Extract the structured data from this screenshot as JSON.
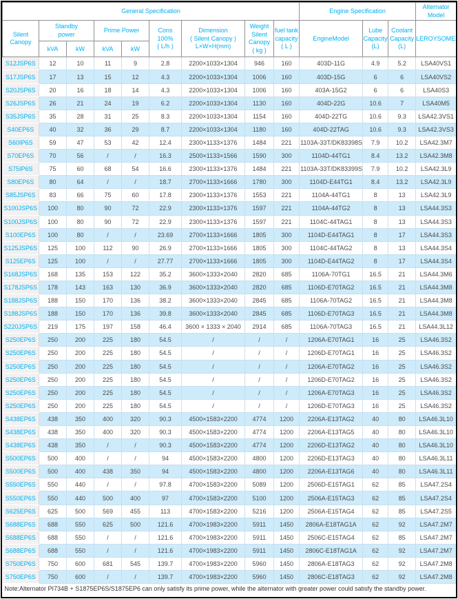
{
  "colors": {
    "accent": "#00AEEF",
    "stripe": "#CDEBFA",
    "first_col_bg": "#F1F1F1",
    "data_text": "#4A4A4A",
    "outer_border": "#000000"
  },
  "table": {
    "groups": {
      "general": "General Specification",
      "engine": "Engine Specification",
      "alternator": "Alternator Model"
    },
    "headers": {
      "silent_canopy": "Silent Canopy",
      "standby_power": "Standby\npower",
      "prime_power": "Prime Power",
      "kva": "kVA",
      "kw": "kW",
      "cons": "Cons\n100%\n( L/h )",
      "dimension": "Dimension\n( Silent Canopy )\nL×W×H(mm)",
      "weight": "Weight\nSilent\nCanopy\n( kg )",
      "fuel_tank": "fuel tank\ncapacity\n( L )",
      "engine_model": "EngineModel",
      "lube": "Lube\nCapacity\n(L)",
      "coolant": "Coolant\nCapacity\n(L)",
      "leroysomer": "LEROYSOMER"
    },
    "rows": [
      [
        "S12JSP6S",
        "12",
        "10",
        "11",
        "9",
        "2.8",
        "2200×1033×1304",
        "946",
        "160",
        "403D-11G",
        "4.9",
        "5.2",
        "LSA40VS1"
      ],
      [
        "S17JSP6S",
        "17",
        "13",
        "15",
        "12",
        "4.3",
        "2200×1033×1304",
        "1006",
        "160",
        "403D-15G",
        "6",
        "6",
        "LSA40VS2"
      ],
      [
        "S20JSP6S",
        "20",
        "16",
        "18",
        "14",
        "4.3",
        "2200×1033×1304",
        "1006",
        "160",
        "403A-15G2",
        "6",
        "6",
        "LSA40S3"
      ],
      [
        "S26JSP6S",
        "26",
        "21",
        "24",
        "19",
        "6.2",
        "2200×1033×1304",
        "1130",
        "160",
        "404D-22G",
        "10.6",
        "7",
        "LSA40M5"
      ],
      [
        "S35JSP6S",
        "35",
        "28",
        "31",
        "25",
        "8.3",
        "2200×1033×1304",
        "1154",
        "160",
        "404D-22TG",
        "10.6",
        "9.3",
        "LSA42.3VS1"
      ],
      [
        "S40EP6S",
        "40",
        "32",
        "36",
        "29",
        "8.7",
        "2200×1033×1304",
        "1180",
        "160",
        "404D-22TAG",
        "10.6",
        "9.3",
        "LSA42.3VS3"
      ],
      [
        "S60IP6S",
        "59",
        "47",
        "53",
        "42",
        "12.4",
        "2300×1133×1376",
        "1484",
        "221",
        "1103A-33T/DK83398S",
        "7.9",
        "10.2",
        "LSA42.3M7"
      ],
      [
        "S70EP6S",
        "70",
        "56",
        "/",
        "/",
        "16.3",
        "2500×1133×1566",
        "1590",
        "300",
        "1104D-44TG1",
        "8.4",
        "13.2",
        "LSA42.3M8"
      ],
      [
        "S75IP6S",
        "75",
        "60",
        "68",
        "54",
        "16.6",
        "2300×1133×1376",
        "1484",
        "221",
        "1103A-33T/DK83399S",
        "7.9",
        "10.2",
        "LSA42.3L9"
      ],
      [
        "S80EP6S",
        "80",
        "64",
        "/",
        "/",
        "18.7",
        "2700×1133×1666",
        "1780",
        "300",
        "1104D-E44TG1",
        "8.4",
        "13.2",
        "LSA42.3L9"
      ],
      [
        "S85JSP6S",
        "83",
        "66",
        "75",
        "60",
        "17.8",
        "2300×1133×1376",
        "1553",
        "221",
        "1104A-44TG1",
        "8",
        "13",
        "LSA42.3L9"
      ],
      [
        "S100JSP6S",
        "100",
        "80",
        "90",
        "72",
        "22.9",
        "2300×1133×1376",
        "1597",
        "221",
        "1104A-44TG2",
        "8",
        "13",
        "LSA44.3S3"
      ],
      [
        "S100JSP6S",
        "100",
        "80",
        "90",
        "72",
        "22.9",
        "2300×1133×1376",
        "1597",
        "221",
        "1104C-44TAG1",
        "8",
        "13",
        "LSA44.3S3"
      ],
      [
        "S100EP6S",
        "100",
        "80",
        "/",
        "/",
        "23.69",
        "2700×1133×1666",
        "1805",
        "300",
        "1104D-E44TAG1",
        "8",
        "17",
        "LSA44.3S3"
      ],
      [
        "S125JSP6S",
        "125",
        "100",
        "112",
        "90",
        "26.9",
        "2700×1133×1666",
        "1805",
        "300",
        "1104C-44TAG2",
        "8",
        "13",
        "LSA44.3S4"
      ],
      [
        "S125EP6S",
        "125",
        "100",
        "/",
        "/",
        "27.77",
        "2700×1133×1666",
        "1805",
        "300",
        "1104D-E44TAG2",
        "8",
        "17",
        "LSA44.3S4"
      ],
      [
        "S168JSP6S",
        "168",
        "135",
        "153",
        "122",
        "35.2",
        "3600×1333×2040",
        "2820",
        "685",
        "1106A-70TG1",
        "16.5",
        "21",
        "LSA44.3M6"
      ],
      [
        "S178JSP6S",
        "178",
        "143",
        "163",
        "130",
        "36.9",
        "3600×1333×2040",
        "2820",
        "685",
        "1106D-E70TAG2",
        "16.5",
        "21",
        "LSA44.3M8"
      ],
      [
        "S188JSP6S",
        "188",
        "150",
        "170",
        "136",
        "38.2",
        "3600×1333×2040",
        "2845",
        "685",
        "1106A-70TAG2",
        "16.5",
        "21",
        "LSA44.3M8"
      ],
      [
        "S188JSP6S",
        "188",
        "150",
        "170",
        "136",
        "39.8",
        "3600×1333×2040",
        "2845",
        "685",
        "1106D-E70TAG3",
        "16.5",
        "21",
        "LSA44.3M8"
      ],
      [
        "S220JSP6S",
        "219",
        "175",
        "197",
        "158",
        "46.4",
        "3600 × 1333 × 2040",
        "2914",
        "685",
        "1106A-70TAG3",
        "16.5",
        "21",
        "LSA44.3L12"
      ],
      [
        "S250EP6S",
        "250",
        "200",
        "225",
        "180",
        "54.5",
        "/",
        "/",
        "/",
        "1206A-E70TAG1",
        "16",
        "25",
        "LSA46.3S2"
      ],
      [
        "S250EP6S",
        "250",
        "200",
        "225",
        "180",
        "54.5",
        "/",
        "/",
        "/",
        "1206D-E70TAG1",
        "16",
        "25",
        "LSA46.3S2"
      ],
      [
        "S250EP6S",
        "250",
        "200",
        "225",
        "180",
        "54.5",
        "/",
        "/",
        "/",
        "1206A-E70TAG2",
        "16",
        "25",
        "LSA46.3S2"
      ],
      [
        "S250EP6S",
        "250",
        "200",
        "225",
        "180",
        "54.5",
        "/",
        "/",
        "/",
        "1206D-E70TAG2",
        "16",
        "25",
        "LSA46.3S2"
      ],
      [
        "S250EP6S",
        "250",
        "200",
        "225",
        "180",
        "54.5",
        "/",
        "/",
        "/",
        "1206A-E70TAG3",
        "16",
        "25",
        "LSA46.3S2"
      ],
      [
        "S250EP6S",
        "250",
        "200",
        "225",
        "180",
        "54.5",
        "/",
        "/",
        "/",
        "1206D-E70TAG3",
        "16",
        "25",
        "LSA46.3S2"
      ],
      [
        "S438EP6S",
        "438",
        "350",
        "400",
        "320",
        "90.3",
        "4500×1583×2200",
        "4774",
        "1200",
        "2206A-E13TAG2",
        "40",
        "80",
        "LSA46.3L10"
      ],
      [
        "S438EP6S",
        "438",
        "350",
        "400",
        "320",
        "90.3",
        "4500×1583×2200",
        "4774",
        "1200",
        "2206A-E13TAG5",
        "40",
        "80",
        "LSA46.3L10"
      ],
      [
        "S438EP6S",
        "438",
        "350",
        "/",
        "/",
        "90.3",
        "4500×1583×2200",
        "4774",
        "1200",
        "2206D-E13TAG2",
        "40",
        "80",
        "LSA46.3L10"
      ],
      [
        "S500EP6S",
        "500",
        "400",
        "/",
        "/",
        "94",
        "4500×1583×2200",
        "4800",
        "1200",
        "2206D-E13TAG3",
        "40",
        "80",
        "LSA46.3L11"
      ],
      [
        "S500EP6S",
        "500",
        "400",
        "438",
        "350",
        "94",
        "4500×1583×2200",
        "4800",
        "1200",
        "2206A-E13TAG6",
        "40",
        "80",
        "LSA46.3L11"
      ],
      [
        "S550EP6S",
        "550",
        "440",
        "/",
        "/",
        "97.8",
        "4700×1583×2200",
        "5089",
        "1200",
        "2506D-E15TAG1",
        "62",
        "85",
        "LSA47.2S4"
      ],
      [
        "S550EP6S",
        "550",
        "440",
        "500",
        "400",
        "97",
        "4700×1583×2200",
        "5100",
        "1200",
        "2506A-E15TAG3",
        "62",
        "85",
        "LSA47.2S4"
      ],
      [
        "S625EP6S",
        "625",
        "500",
        "569",
        "455",
        "113",
        "4700×1583×2200",
        "5216",
        "1200",
        "2506A-E15TAG4",
        "62",
        "85",
        "LSA47.2S5"
      ],
      [
        "S688EP6S",
        "688",
        "550",
        "625",
        "500",
        "121.6",
        "4700×1983×2200",
        "5911",
        "1450",
        "2806A-E18TAG1A",
        "62",
        "92",
        "LSA47.2M7"
      ],
      [
        "S688EP6S",
        "688",
        "550",
        "/",
        "/",
        "121.6",
        "4700×1983×2200",
        "5911",
        "1450",
        "2506C-E15TAG4",
        "62",
        "85",
        "LSA47.2M7"
      ],
      [
        "S688EP6S",
        "688",
        "550",
        "/",
        "/",
        "121.6",
        "4700×1983×2200",
        "5911",
        "1450",
        "2806C-E18TAG1A",
        "62",
        "92",
        "LSA47.2M7"
      ],
      [
        "S750EP6S",
        "750",
        "600",
        "681",
        "545",
        "139.7",
        "4700×1983×2200",
        "5960",
        "1450",
        "2806A-E18TAG3",
        "62",
        "92",
        "LSA47.2M8"
      ],
      [
        "S750EP6S",
        "750",
        "600",
        "/",
        "/",
        "139.7",
        "4700×1983×2200",
        "5960",
        "1450",
        "2806C-E18TAG3",
        "62",
        "92",
        "LSA47.2M8"
      ]
    ],
    "note": "Note:Alternator PI734B + S1875EP6S/S1875EP6 can only satisfy its prime power, while the alternator with greater power could satisfy the standby power."
  }
}
